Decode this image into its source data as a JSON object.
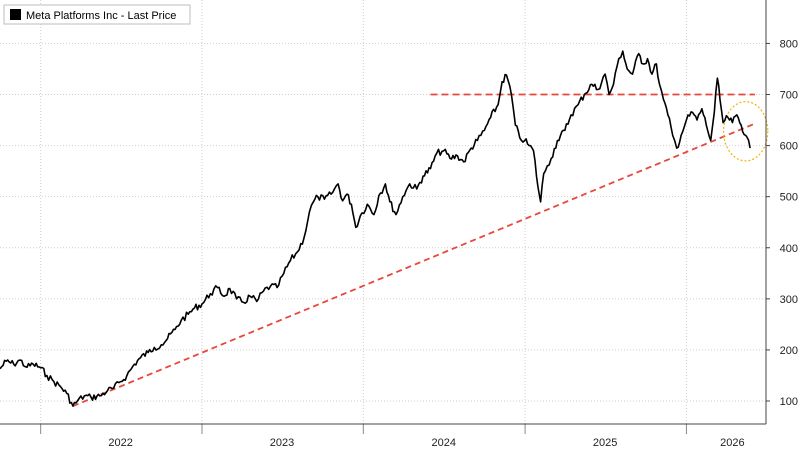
{
  "legend": {
    "label": "Meta Platforms Inc - Last Price",
    "color": "#000000"
  },
  "colors": {
    "price": "#000000",
    "trend": "#e8473c",
    "circle": "#f2b200",
    "grid": "#cfcfcf"
  },
  "chart_data": {
    "type": "line",
    "title": "",
    "xlabel": "",
    "ylabel": "",
    "legend_position": "top-left",
    "grid": true,
    "y_axis_side": "right",
    "xlim": [
      "2021-10-01",
      "2026-06-30"
    ],
    "ylim": [
      55,
      885
    ],
    "y_ticks": [
      100,
      200,
      300,
      400,
      500,
      600,
      700,
      800
    ],
    "y_tick_labels": [
      "100",
      "200",
      "300",
      "400",
      "500",
      "600",
      "700",
      "800"
    ],
    "x_tick_labels": [
      {
        "label": "2022",
        "date": "2022-07-01"
      },
      {
        "label": "2023",
        "date": "2023-07-01"
      },
      {
        "label": "2024",
        "date": "2024-07-01"
      },
      {
        "label": "2025",
        "date": "2025-07-01"
      },
      {
        "label": "2026",
        "date": "2026-04-15"
      }
    ],
    "x_boundaries": [
      "2022-01-01",
      "2023-01-01",
      "2024-01-01",
      "2025-01-01",
      "2026-01-01"
    ],
    "series": [
      {
        "name": "Meta Platforms Inc - Last Price",
        "points": [
          [
            "2021-10-01",
            163
          ],
          [
            "2021-10-15",
            178
          ],
          [
            "2021-11-01",
            172
          ],
          [
            "2021-11-15",
            180
          ],
          [
            "2021-12-01",
            166
          ],
          [
            "2021-12-15",
            172
          ],
          [
            "2022-01-01",
            165
          ],
          [
            "2022-01-15",
            150
          ],
          [
            "2022-01-31",
            138
          ],
          [
            "2022-02-15",
            128
          ],
          [
            "2022-03-01",
            115
          ],
          [
            "2022-03-15",
            90
          ],
          [
            "2022-03-25",
            100
          ],
          [
            "2022-04-10",
            110
          ],
          [
            "2022-04-25",
            107
          ],
          [
            "2022-05-15",
            110
          ],
          [
            "2022-06-01",
            120
          ],
          [
            "2022-06-15",
            125
          ],
          [
            "2022-07-01",
            138
          ],
          [
            "2022-07-15",
            150
          ],
          [
            "2022-08-01",
            172
          ],
          [
            "2022-08-15",
            185
          ],
          [
            "2022-09-01",
            195
          ],
          [
            "2022-09-15",
            205
          ],
          [
            "2022-10-01",
            210
          ],
          [
            "2022-10-15",
            222
          ],
          [
            "2022-11-01",
            240
          ],
          [
            "2022-11-15",
            258
          ],
          [
            "2022-12-01",
            270
          ],
          [
            "2022-12-15",
            282
          ],
          [
            "2023-01-01",
            290
          ],
          [
            "2023-01-20",
            310
          ],
          [
            "2023-02-05",
            322
          ],
          [
            "2023-02-20",
            305
          ],
          [
            "2023-03-05",
            320
          ],
          [
            "2023-03-20",
            300
          ],
          [
            "2023-04-05",
            293
          ],
          [
            "2023-04-20",
            305
          ],
          [
            "2023-05-05",
            295
          ],
          [
            "2023-05-20",
            315
          ],
          [
            "2023-06-05",
            325
          ],
          [
            "2023-06-20",
            322
          ],
          [
            "2023-07-05",
            350
          ],
          [
            "2023-07-20",
            375
          ],
          [
            "2023-08-05",
            392
          ],
          [
            "2023-08-20",
            420
          ],
          [
            "2023-09-01",
            470
          ],
          [
            "2023-09-10",
            490
          ],
          [
            "2023-09-20",
            500
          ],
          [
            "2023-10-05",
            495
          ],
          [
            "2023-10-20",
            505
          ],
          [
            "2023-11-05",
            525
          ],
          [
            "2023-11-15",
            492
          ],
          [
            "2023-11-25",
            505
          ],
          [
            "2023-12-05",
            485
          ],
          [
            "2023-12-15",
            440
          ],
          [
            "2023-12-25",
            462
          ],
          [
            "2024-01-10",
            485
          ],
          [
            "2024-01-25",
            465
          ],
          [
            "2024-02-05",
            502
          ],
          [
            "2024-02-20",
            525
          ],
          [
            "2024-03-01",
            490
          ],
          [
            "2024-03-15",
            465
          ],
          [
            "2024-03-30",
            500
          ],
          [
            "2024-04-15",
            525
          ],
          [
            "2024-05-01",
            515
          ],
          [
            "2024-05-15",
            540
          ],
          [
            "2024-06-01",
            555
          ],
          [
            "2024-06-15",
            585
          ],
          [
            "2024-07-01",
            590
          ],
          [
            "2024-07-15",
            575
          ],
          [
            "2024-08-01",
            580
          ],
          [
            "2024-08-15",
            568
          ],
          [
            "2024-09-01",
            595
          ],
          [
            "2024-09-15",
            610
          ],
          [
            "2024-10-01",
            630
          ],
          [
            "2024-10-15",
            655
          ],
          [
            "2024-11-01",
            680
          ],
          [
            "2024-11-10",
            725
          ],
          [
            "2024-11-20",
            738
          ],
          [
            "2024-12-01",
            700
          ],
          [
            "2024-12-10",
            640
          ],
          [
            "2024-12-20",
            615
          ],
          [
            "2024-12-31",
            610
          ],
          [
            "2025-01-10",
            600
          ],
          [
            "2025-01-20",
            590
          ],
          [
            "2025-01-30",
            520
          ],
          [
            "2025-02-05",
            490
          ],
          [
            "2025-02-12",
            545
          ],
          [
            "2025-02-20",
            560
          ],
          [
            "2025-03-01",
            575
          ],
          [
            "2025-03-15",
            610
          ],
          [
            "2025-04-01",
            630
          ],
          [
            "2025-04-15",
            660
          ],
          [
            "2025-05-01",
            680
          ],
          [
            "2025-05-15",
            700
          ],
          [
            "2025-06-01",
            720
          ],
          [
            "2025-06-15",
            710
          ],
          [
            "2025-07-01",
            740
          ],
          [
            "2025-07-10",
            700
          ],
          [
            "2025-07-20",
            720
          ],
          [
            "2025-08-01",
            770
          ],
          [
            "2025-08-10",
            785
          ],
          [
            "2025-08-20",
            750
          ],
          [
            "2025-09-01",
            740
          ],
          [
            "2025-09-15",
            780
          ],
          [
            "2025-09-25",
            760
          ],
          [
            "2025-10-05",
            770
          ],
          [
            "2025-10-15",
            740
          ],
          [
            "2025-10-25",
            760
          ],
          [
            "2025-11-01",
            720
          ],
          [
            "2025-11-10",
            690
          ],
          [
            "2025-11-20",
            660
          ],
          [
            "2025-12-01",
            620
          ],
          [
            "2025-12-10",
            595
          ],
          [
            "2025-12-20",
            620
          ],
          [
            "2026-01-01",
            650
          ],
          [
            "2026-01-15",
            665
          ],
          [
            "2026-01-25",
            650
          ],
          [
            "2026-02-05",
            672
          ],
          [
            "2026-02-15",
            640
          ],
          [
            "2026-02-25",
            610
          ],
          [
            "2026-03-05",
            665
          ],
          [
            "2026-03-12",
            732
          ],
          [
            "2026-03-18",
            690
          ],
          [
            "2026-03-25",
            645
          ],
          [
            "2026-04-05",
            655
          ],
          [
            "2026-04-15",
            645
          ],
          [
            "2026-04-25",
            660
          ],
          [
            "2026-05-05",
            640
          ],
          [
            "2026-05-15",
            620
          ],
          [
            "2026-05-25",
            595
          ]
        ]
      }
    ],
    "annotations": {
      "trendline": {
        "start": [
          "2022-03-15",
          90
        ],
        "end": [
          "2026-06-05",
          643
        ]
      },
      "resistance": {
        "start": [
          "2024-06-01",
          700
        ],
        "end": [
          "2026-06-05",
          700
        ],
        "value": 700
      },
      "circle": {
        "center": [
          "2026-05-15",
          628
        ],
        "radius_days": 50,
        "radius_value": 58
      }
    }
  }
}
